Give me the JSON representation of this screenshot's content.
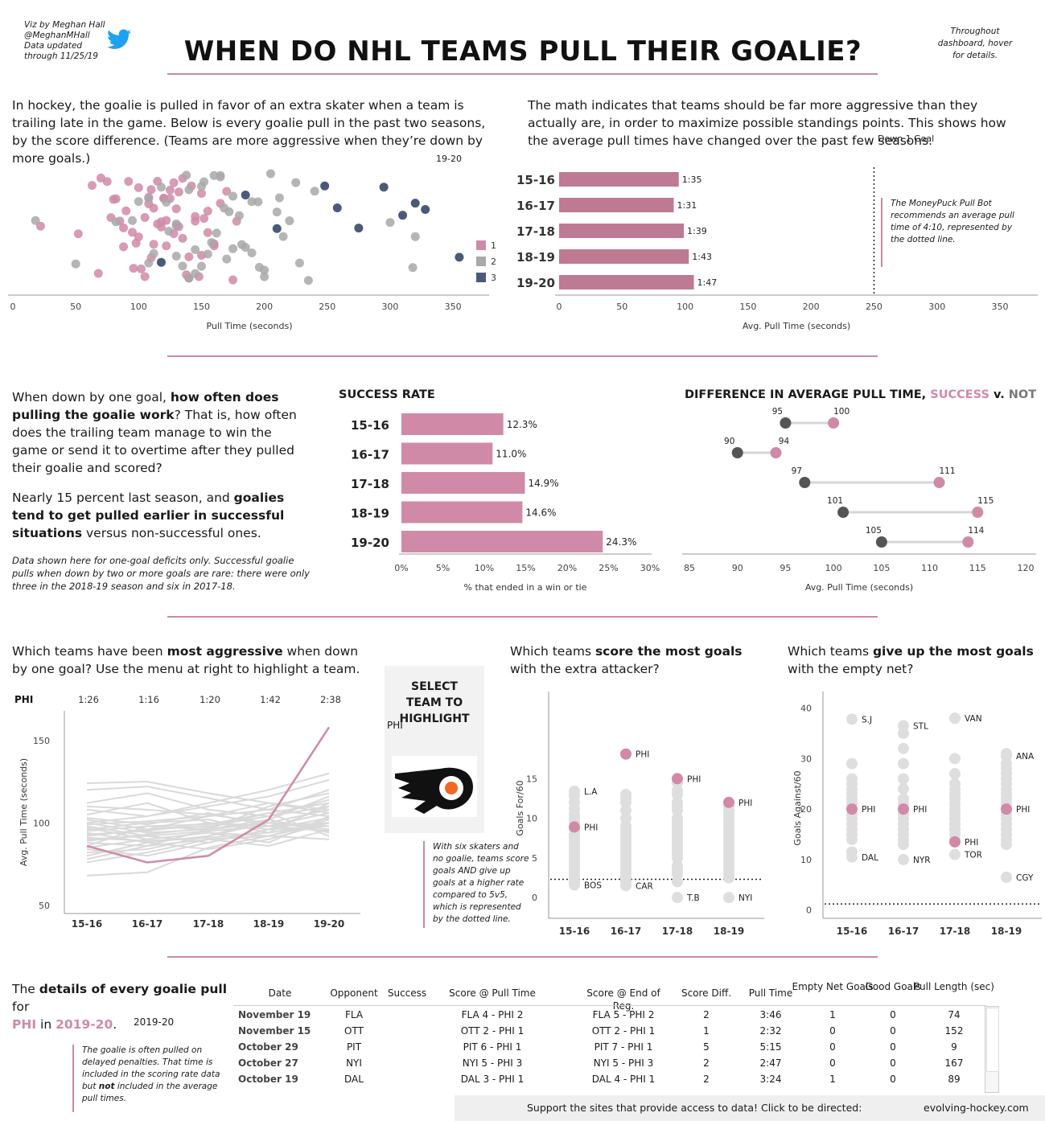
{
  "credit": {
    "line1": "Viz by Meghan Hall",
    "line2": "@MeghanMHall",
    "line3": "Data updated",
    "line4": "through 11/25/19"
  },
  "title": "WHEN DO NHL TEAMS PULL THEIR GOALIE?",
  "hover_note": "Throughout dashboard, hover for details.",
  "section1": {
    "intro_left": "In hockey, the goalie is pulled in favor of an extra skater when a team is trailing late in the game. Below is every goalie pull in the past two seasons, by the score difference. (Teams are more aggressive when they’re down by more goals.)",
    "season_label": "19-20",
    "intro_right": "The math indicates that teams should be far more aggressive than they actually are, in order to maximize possible standings points. This shows how the average pull times have changed over the past few seasons.",
    "filter_label": "Down 1 Goal",
    "note": "The MoneyPuck Pull Bot recommends an average pull time of 4:10, represented by the dotted line."
  },
  "section2": {
    "intro_p1_a": "When down by one goal, ",
    "intro_p1_b": "how often does pulling the goalie work",
    "intro_p1_c": "? That is, how often does the trailing team manage to win the game or send it to overtime after they pulled their goalie and scored?",
    "intro_p2_a": "Nearly 15 percent last season, and ",
    "intro_p2_b": "goalies tend to get pulled earlier in successful situations",
    "intro_p2_c": " versus non-successful ones.",
    "footnote": "Data shown here for one-goal deficits only. Successful goalie pulls when down by two or more goals are rare: there were only three in the 2018-19 season and six in 2017-18.",
    "success_title": "SUCCESS RATE",
    "diff_title_a": "DIFFERENCE IN AVERAGE PULL TIME, ",
    "diff_title_b": "SUCCESS",
    "diff_title_c": " v. ",
    "diff_title_d": "NOT"
  },
  "section3": {
    "intro1_a": "Which teams have been ",
    "intro1_b": "most aggressive",
    "intro1_c": " when down by one goal? Use the menu at right to highlight a team.",
    "select_title": "SELECT TEAM TO HIGHLIGHT",
    "select_value": "PHI",
    "intro2_a": "Which teams ",
    "intro2_b": "score the most goals",
    "intro2_c": " with the extra attacker?",
    "intro3_a": "Which teams ",
    "intro3_b": "give up the most goals",
    "intro3_c": " with the empty net?",
    "note": "With six skaters and no goalie, teams score goals AND give up goals at a higher rate compared to 5v5, which is represented by the dotted line."
  },
  "section4": {
    "title_a": "The ",
    "title_b": "details of every goalie pull",
    "title_c": " for",
    "team": "PHI",
    "title_in": " in ",
    "season": "2019-20",
    "title_end": ".",
    "season_label": "2019-20",
    "note_a": "The goalie is often pulled on delayed penalties. That time is included in the scoring rate data but ",
    "note_b": "not",
    "note_c": "  included in the average pull times.",
    "columns": [
      "Date",
      "Opponent",
      "Success",
      "Score @ Pull Time",
      "Score @ End of Reg.",
      "Score Diff.",
      "Pull Time",
      "Empty Net Goals",
      "Good Goals",
      "Pull Length (sec)"
    ],
    "rows": [
      [
        "November 19",
        "FLA",
        "",
        "FLA 4 - PHI 2",
        "FLA 5 - PHI 2",
        "2",
        "3:46",
        "1",
        "0",
        "74"
      ],
      [
        "November 15",
        "OTT",
        "",
        "OTT 2 - PHI 1",
        "OTT 2 - PHI 1",
        "1",
        "2:32",
        "0",
        "0",
        "152"
      ],
      [
        "October 29",
        "PIT",
        "",
        "PIT 6 - PHI 1",
        "PIT 7 - PHI 1",
        "5",
        "5:15",
        "0",
        "0",
        "9"
      ],
      [
        "October 27",
        "NYI",
        "",
        "NYI 5 - PHI 3",
        "NYI 5 - PHI 3",
        "2",
        "2:47",
        "0",
        "0",
        "167"
      ],
      [
        "October 19",
        "DAL",
        "",
        "DAL 3 - PHI 1",
        "DAL 4 - PHI 1",
        "2",
        "3:24",
        "1",
        "0",
        "89"
      ]
    ],
    "footer_text": "Support the sites that provide access to data! Click to be directed:",
    "footer_link": "evolving-hockey.com"
  },
  "colors": {
    "pink": "#d08aa8",
    "gray": "#a8a8a8",
    "navy": "#4a5a78",
    "rule": "#c98aa5",
    "dark": "#555555"
  },
  "chart_data": [
    {
      "type": "scatter",
      "id": "pull-times-by-score-diff",
      "xlabel": "Pull Time (seconds)",
      "xlim": [
        0,
        380
      ],
      "xticks": [
        0,
        50,
        100,
        150,
        200,
        250,
        300,
        350
      ],
      "legend": [
        "1",
        "2",
        "3"
      ],
      "legend_placement": "right",
      "series": [
        {
          "name": "1",
          "x": [
            22,
            52,
            63,
            80,
            85,
            88,
            92,
            96,
            100,
            105,
            108,
            110,
            112,
            115,
            118,
            120,
            122,
            125,
            128,
            130,
            132,
            135,
            138,
            140,
            142,
            145,
            148,
            150,
            152,
            155,
            160,
            165,
            170,
            175,
            178,
            120,
            95,
            130,
            110,
            140,
            155,
            90,
            75,
            68,
            82,
            102,
            115,
            125,
            135,
            145,
            150,
            160,
            100,
            108,
            118,
            128,
            70,
            78,
            88,
            98,
            105,
            112,
            122,
            132
          ]
        },
        {
          "name": "2",
          "x": [
            18,
            50,
            82,
            95,
            100,
            108,
            112,
            118,
            122,
            130,
            135,
            140,
            145,
            150,
            155,
            158,
            162,
            165,
            168,
            172,
            175,
            180,
            185,
            190,
            195,
            200,
            205,
            210,
            215,
            220,
            225,
            235,
            300,
            318,
            320,
            130,
            150,
            170,
            200,
            190,
            160,
            140,
            145,
            175,
            182,
            196,
            212,
            228,
            240,
            165,
            152,
            138,
            124,
            108
          ]
        },
        {
          "name": "3",
          "x": [
            118,
            185,
            210,
            248,
            258,
            275,
            295,
            310,
            320,
            328,
            355
          ]
        }
      ]
    },
    {
      "type": "bar",
      "id": "avg-pull-time-by-season",
      "categories": [
        "15-16",
        "16-17",
        "17-18",
        "18-19",
        "19-20"
      ],
      "values": [
        95,
        91,
        99,
        103,
        107
      ],
      "data_labels": [
        "1:35",
        "1:31",
        "1:39",
        "1:43",
        "1:47"
      ],
      "xlabel": "Avg. Pull Time (seconds)",
      "xlim": [
        0,
        380
      ],
      "xticks": [
        0,
        50,
        100,
        150,
        200,
        250,
        300,
        350
      ],
      "reference_line": 250
    },
    {
      "type": "bar",
      "id": "success-rate",
      "title": "SUCCESS RATE",
      "categories": [
        "15-16",
        "16-17",
        "17-18",
        "18-19",
        "19-20"
      ],
      "values": [
        12.3,
        11.0,
        14.9,
        14.6,
        24.3
      ],
      "data_labels": [
        "12.3%",
        "11.0%",
        "14.9%",
        "14.6%",
        "24.3%"
      ],
      "xlabel": "% that ended in a win or tie",
      "xlim": [
        0,
        30
      ],
      "xticks": [
        "0%",
        "5%",
        "10%",
        "15%",
        "20%",
        "25%",
        "30%"
      ]
    },
    {
      "type": "dumbbell",
      "id": "pull-time-success-vs-not",
      "xlabel": "Avg. Pull Time (seconds)",
      "xlim": [
        85,
        120
      ],
      "xticks": [
        85,
        90,
        95,
        100,
        105,
        110,
        115,
        120
      ],
      "rows": [
        {
          "not": 95,
          "success": 100
        },
        {
          "not": 90,
          "success": 94
        },
        {
          "not": 97,
          "success": 111
        },
        {
          "not": 101,
          "success": 115
        },
        {
          "not": 105,
          "success": 114
        }
      ]
    },
    {
      "type": "line",
      "id": "team-avg-pull-time",
      "categories": [
        "15-16",
        "16-17",
        "17-18",
        "18-19",
        "19-20"
      ],
      "highlight_team": "PHI",
      "highlight_labels": [
        "1:26",
        "1:16",
        "1:20",
        "1:42",
        "2:38"
      ],
      "highlight_values": [
        86,
        76,
        80,
        102,
        158
      ],
      "ylabel": "Avg. Pull Time (seconds)",
      "ylim": [
        45,
        165
      ],
      "yticks": [
        50,
        100,
        150
      ],
      "other_teams": [
        [
          124,
          125,
          118,
          112,
          108
        ],
        [
          120,
          122,
          115,
          108,
          104
        ],
        [
          110,
          108,
          105,
          100,
          98
        ],
        [
          105,
          112,
          100,
          96,
          103
        ],
        [
          102,
          96,
          98,
          104,
          110
        ],
        [
          100,
          94,
          96,
          110,
          118
        ],
        [
          98,
          92,
          95,
          98,
          106
        ],
        [
          96,
          100,
          102,
          94,
          100
        ],
        [
          95,
          98,
          99,
          106,
          112
        ],
        [
          94,
          88,
          92,
          100,
          96
        ],
        [
          92,
          96,
          104,
          108,
          120
        ],
        [
          90,
          92,
          88,
          96,
          110
        ],
        [
          88,
          86,
          90,
          92,
          100
        ],
        [
          86,
          98,
          96,
          102,
          94
        ],
        [
          85,
          90,
          94,
          88,
          104
        ],
        [
          84,
          80,
          88,
          96,
          98
        ],
        [
          82,
          84,
          92,
          102,
          116
        ],
        [
          80,
          88,
          84,
          90,
          100
        ],
        [
          78,
          86,
          96,
          100,
          108
        ],
        [
          76,
          82,
          90,
          86,
          96
        ],
        [
          68,
          70,
          85,
          92,
          90
        ],
        [
          108,
          104,
          110,
          116,
          126
        ],
        [
          112,
          118,
          108,
          104,
          114
        ],
        [
          100,
          104,
          112,
          120,
          130
        ],
        [
          97,
          90,
          94,
          92,
          102
        ],
        [
          93,
          95,
          100,
          98,
          95
        ],
        [
          89,
          93,
          97,
          106,
          92
        ],
        [
          99,
          101,
          104,
          112,
          106
        ],
        [
          103,
          99,
          106,
          98,
          100
        ],
        [
          91,
          89,
          91,
          94,
          112
        ]
      ]
    },
    {
      "type": "strip",
      "id": "goals-for-per-60",
      "ylabel": "Goals For/60",
      "ylim": [
        -1,
        20
      ],
      "yticks": [
        0,
        5,
        10,
        15
      ],
      "categories": [
        "15-16",
        "16-17",
        "17-18",
        "18-19"
      ],
      "reference_line": 2.3,
      "highlight": [
        {
          "team": "PHI",
          "value": 8.9
        },
        {
          "team": "PHI",
          "value": 18.1
        },
        {
          "team": "PHI",
          "value": 15.0
        },
        {
          "team": "PHI",
          "value": 12.0
        }
      ],
      "labels": [
        {
          "cat": 0,
          "team": "L.A",
          "value": 13.4
        },
        {
          "cat": 0,
          "team": "BOS",
          "value": 1.6
        },
        {
          "cat": 1,
          "team": "CAR",
          "value": 1.5
        },
        {
          "cat": 2,
          "team": "T.B",
          "value": 0
        },
        {
          "cat": 3,
          "team": "NYI",
          "value": 0
        }
      ],
      "others": [
        [
          13.4,
          12.8,
          12.0,
          11.2,
          10.5,
          10.0,
          9.5,
          8.5,
          8.0,
          7.5,
          7.0,
          6.5,
          6.0,
          5.5,
          5.0,
          4.5,
          4.0,
          3.5,
          3.0,
          2.5,
          2.0,
          1.6
        ],
        [
          13.0,
          12.5,
          12.0,
          11.0,
          10.0,
          9.0,
          8.5,
          8.0,
          7.5,
          7.0,
          6.5,
          6.0,
          5.5,
          5.0,
          4.5,
          4.0,
          3.5,
          3.0,
          2.5,
          2.0,
          1.5
        ],
        [
          14.5,
          13.5,
          13.0,
          12.0,
          11.5,
          11.0,
          10.0,
          9.5,
          9.0,
          8.5,
          8.0,
          7.5,
          7.0,
          6.5,
          6.0,
          5.5,
          5.0,
          4.0,
          3.5,
          3.0,
          2.0,
          0
        ],
        [
          11.5,
          11.0,
          10.5,
          10.0,
          9.5,
          9.0,
          8.5,
          8.0,
          7.5,
          7.0,
          6.5,
          6.0,
          5.5,
          5.0,
          4.5,
          4.0,
          3.5,
          3.0,
          2.5,
          0
        ]
      ]
    },
    {
      "type": "strip",
      "id": "goals-against-per-60",
      "ylabel": "Goals Against/60",
      "ylim": [
        -1,
        42
      ],
      "yticks": [
        0,
        10,
        20,
        30,
        40
      ],
      "categories": [
        "15-16",
        "16-17",
        "17-18",
        "18-19"
      ],
      "reference_line": 1.2,
      "highlight": [
        {
          "team": "PHI",
          "value": 20.0
        },
        {
          "team": "PHI",
          "value": 20.0
        },
        {
          "team": "PHI",
          "value": 13.5
        },
        {
          "team": "PHI",
          "value": 20.0
        }
      ],
      "labels": [
        {
          "cat": 0,
          "team": "S.J",
          "value": 37.8
        },
        {
          "cat": 0,
          "team": "DAL",
          "value": 10.5
        },
        {
          "cat": 1,
          "team": "STL",
          "value": 36.5
        },
        {
          "cat": 1,
          "team": "NYR",
          "value": 10.0
        },
        {
          "cat": 2,
          "team": "VAN",
          "value": 38.0
        },
        {
          "cat": 2,
          "team": "TOR",
          "value": 11.0
        },
        {
          "cat": 3,
          "team": "ANA",
          "value": 30.5
        },
        {
          "cat": 3,
          "team": "CGY",
          "value": 6.5
        }
      ],
      "others": [
        [
          37.8,
          29.0,
          26.0,
          25.0,
          24.0,
          23.0,
          22.0,
          21.0,
          20.0,
          19.0,
          18.0,
          17.0,
          16.0,
          15.0,
          14.0,
          11.5,
          10.5
        ],
        [
          36.5,
          35.0,
          32.0,
          29.0,
          26.0,
          24.0,
          22.0,
          21.0,
          20.0,
          19.0,
          18.0,
          17.0,
          16.0,
          15.0,
          14.0,
          13.0,
          10.0
        ],
        [
          38.0,
          30.0,
          27.0,
          25.0,
          24.0,
          23.0,
          22.0,
          21.0,
          20.0,
          19.0,
          18.0,
          17.0,
          16.0,
          15.0,
          14.0,
          11.0
        ],
        [
          31.0,
          30.5,
          29.0,
          28.0,
          27.0,
          26.0,
          25.0,
          24.0,
          23.0,
          22.0,
          21.0,
          20.0,
          19.0,
          18.0,
          17.0,
          16.0,
          15.0,
          14.0,
          13.0,
          6.5
        ]
      ]
    }
  ]
}
